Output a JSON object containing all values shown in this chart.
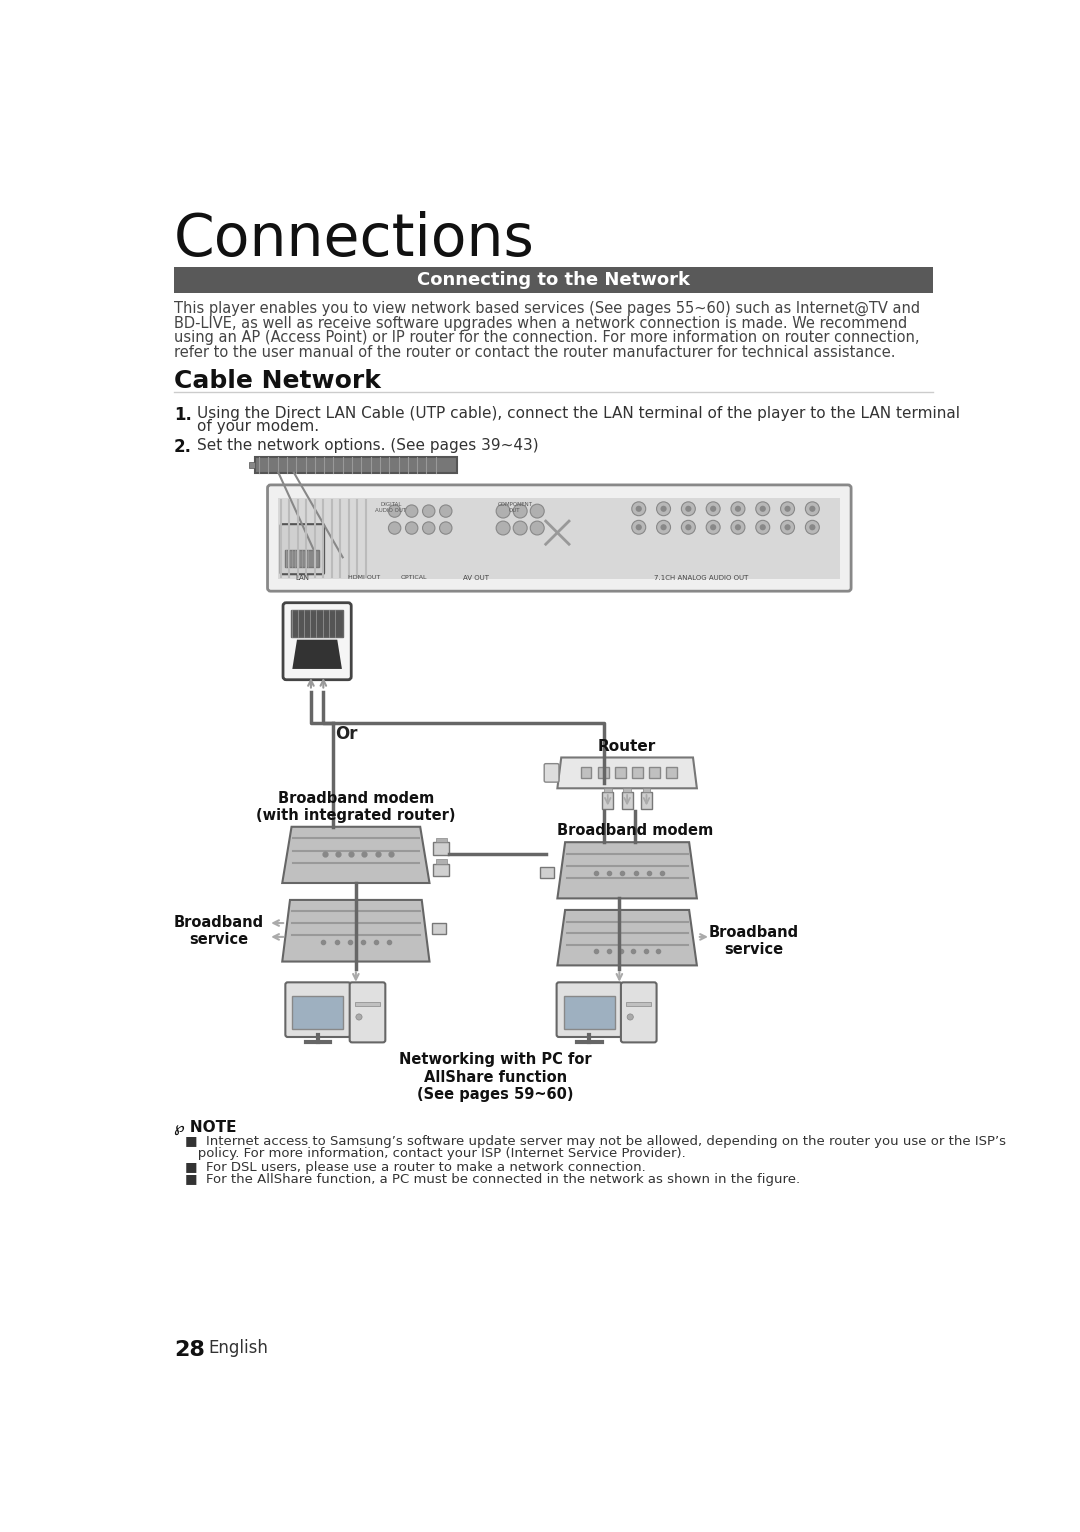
{
  "page_title": "Connections",
  "section_header": "Connecting to the Network",
  "section_header_bg": "#595959",
  "section_header_color": "#ffffff",
  "intro_text": "This player enables you to view network based services (See pages 55~60) such as Internet@TV and\nBD-LIVE, as well as receive software upgrades when a network connection is made. We recommend\nusing an AP (Access Point) or IP router for the connection. For more information on router connection,\nrefer to the user manual of the router or contact the router manufacturer for technical assistance.",
  "subsection_title": "Cable Network",
  "step1_num": "1.",
  "step1_text": "Using the Direct LAN Cable (UTP cable), connect the LAN terminal of the player to the LAN terminal",
  "step1_text2": "of your modem.",
  "step2_num": "2.",
  "step2_text": "Set the network options. (See pages 39~43)",
  "label_or": "Or",
  "label_router": "Router",
  "label_broadband_modem_left": "Broadband modem\n(with integrated router)",
  "label_broadband_service_left": "Broadband\nservice",
  "label_broadband_modem_right": "Broadband modem",
  "label_broadband_service_right": "Broadband\nservice",
  "label_networking": "Networking with PC for\nAllShare function\n(See pages 59~60)",
  "note_title": "℘ NOTE",
  "note1": "■  Internet access to Samsung’s software update server may not be allowed, depending on the router you use or the ISP’s",
  "note1b": "   policy. For more information, contact your ISP (Internet Service Provider).",
  "note2": "■  For DSL users, please use a router to make a network connection.",
  "note3": "■  For the AllShare function, a PC must be connected in the network as shown in the figure.",
  "footer_num": "28",
  "footer_lang": "English",
  "bg_color": "#ffffff"
}
